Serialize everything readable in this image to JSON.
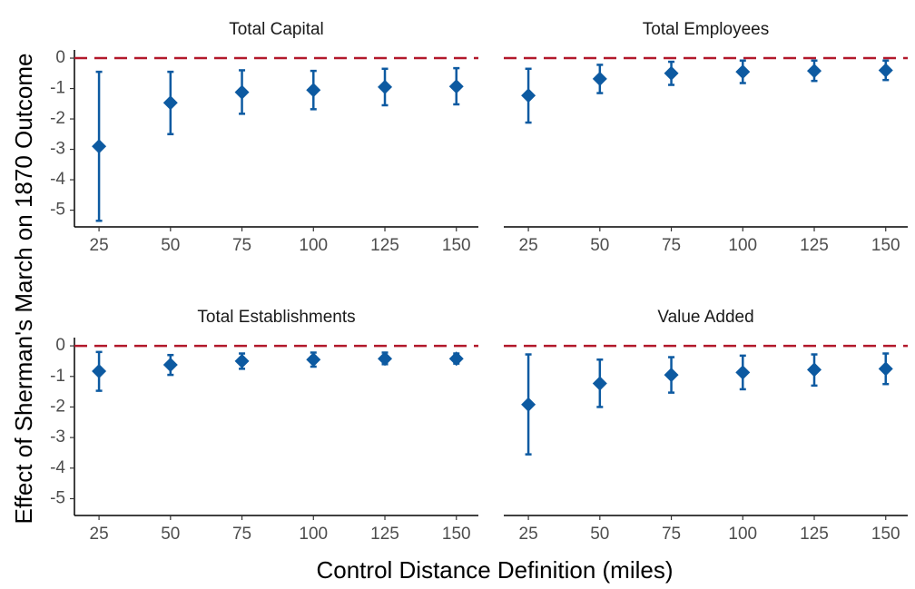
{
  "xlabel": "Control Distance Definition (miles)",
  "ylabel": "Effect of Sherman's March on 1870 Outcome",
  "chart_data": [
    {
      "type": "errorbar",
      "title": "Total Capital",
      "color": "#0d5aa1",
      "hline": 0,
      "hline_color": "#b2182b",
      "x": [
        25,
        50,
        75,
        100,
        125,
        150
      ],
      "values": [
        -2.9,
        -1.47,
        -1.12,
        -1.05,
        -0.95,
        -0.93
      ],
      "lower": [
        -5.35,
        -2.5,
        -1.83,
        -1.68,
        -1.55,
        -1.52
      ],
      "upper": [
        -0.45,
        -0.45,
        -0.4,
        -0.42,
        -0.35,
        -0.33
      ],
      "xlim": [
        16.4,
        157.7
      ],
      "xticks": [
        25,
        50,
        75,
        100,
        125,
        150
      ],
      "ylim": [
        -5.55,
        0.27
      ],
      "yticks": [
        0,
        -1,
        -2,
        -3,
        -4,
        -5
      ]
    },
    {
      "type": "errorbar",
      "title": "Total Employees",
      "color": "#0d5aa1",
      "hline": 0,
      "hline_color": "#b2182b",
      "x": [
        25,
        50,
        75,
        100,
        125,
        150
      ],
      "values": [
        -1.23,
        -0.68,
        -0.5,
        -0.45,
        -0.42,
        -0.4
      ],
      "lower": [
        -2.12,
        -1.15,
        -0.88,
        -0.82,
        -0.75,
        -0.72
      ],
      "upper": [
        -0.35,
        -0.22,
        -0.12,
        -0.08,
        -0.08,
        -0.08
      ],
      "xlim": [
        16.4,
        157.7
      ],
      "xticks": [
        25,
        50,
        75,
        100,
        125,
        150
      ],
      "ylim": [
        -5.55,
        0.27
      ]
    },
    {
      "type": "errorbar",
      "title": "Total Establishments",
      "color": "#0d5aa1",
      "hline": 0,
      "hline_color": "#b2182b",
      "x": [
        25,
        50,
        75,
        100,
        125,
        150
      ],
      "values": [
        -0.83,
        -0.62,
        -0.5,
        -0.45,
        -0.42,
        -0.42
      ],
      "lower": [
        -1.47,
        -0.95,
        -0.75,
        -0.68,
        -0.6,
        -0.58
      ],
      "upper": [
        -0.2,
        -0.3,
        -0.25,
        -0.22,
        -0.22,
        -0.25
      ],
      "xlim": [
        16.4,
        157.7
      ],
      "xticks": [
        25,
        50,
        75,
        100,
        125,
        150
      ],
      "ylim": [
        -5.55,
        0.27
      ],
      "yticks": [
        0,
        -1,
        -2,
        -3,
        -4,
        -5
      ]
    },
    {
      "type": "errorbar",
      "title": "Value Added",
      "color": "#0d5aa1",
      "hline": 0,
      "hline_color": "#b2182b",
      "x": [
        25,
        50,
        75,
        100,
        125,
        150
      ],
      "values": [
        -1.92,
        -1.23,
        -0.95,
        -0.87,
        -0.78,
        -0.75
      ],
      "lower": [
        -3.55,
        -2.0,
        -1.53,
        -1.42,
        -1.3,
        -1.25
      ],
      "upper": [
        -0.28,
        -0.45,
        -0.37,
        -0.32,
        -0.28,
        -0.25
      ],
      "xlim": [
        16.4,
        157.7
      ],
      "xticks": [
        25,
        50,
        75,
        100,
        125,
        150
      ],
      "ylim": [
        -5.55,
        0.27
      ]
    }
  ]
}
